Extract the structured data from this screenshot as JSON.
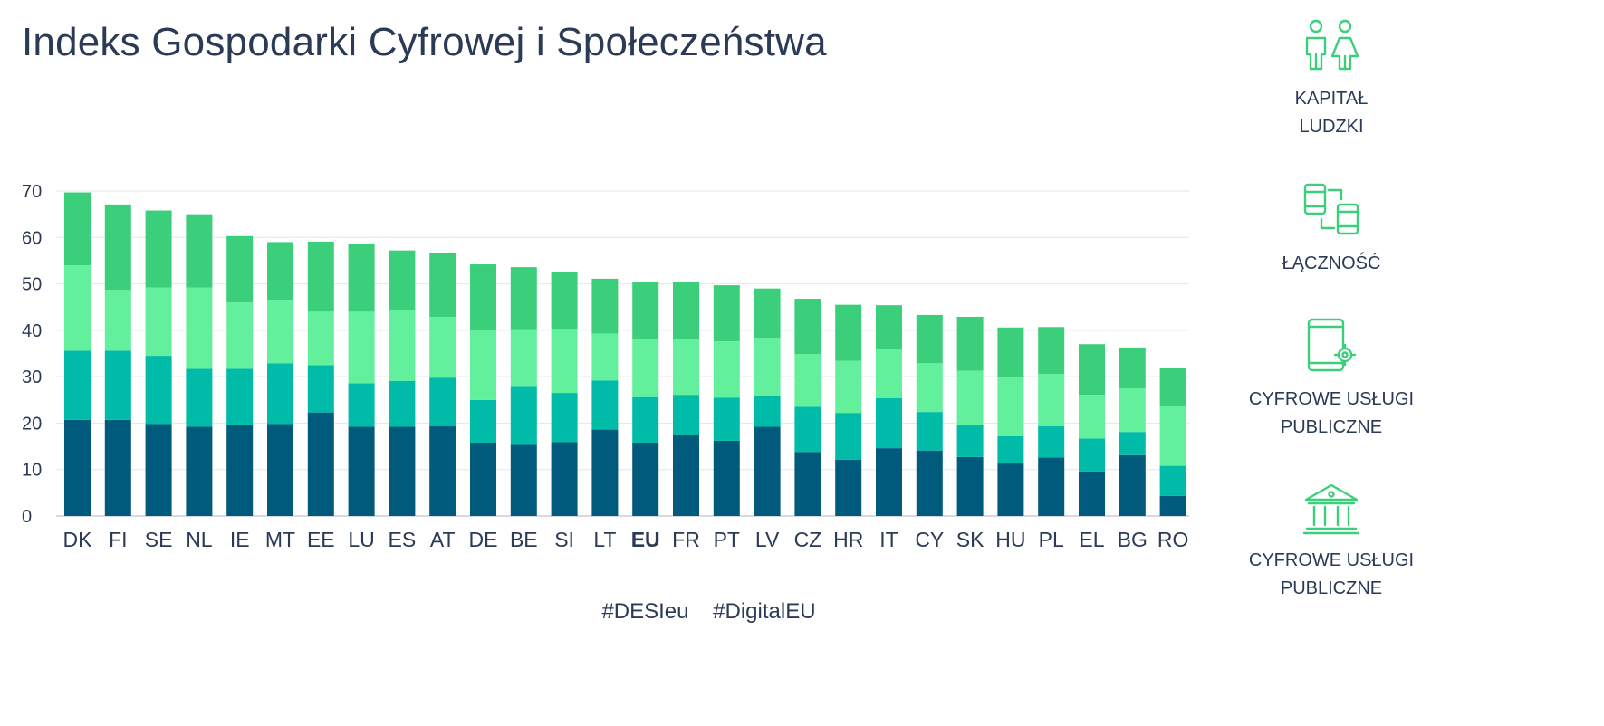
{
  "chart_data": {
    "type": "bar",
    "stacked": true,
    "title": "Indeks Gospodarki Cyfrowej i Społeczeństwa",
    "categories": [
      "DK",
      "FI",
      "SE",
      "NL",
      "IE",
      "MT",
      "EE",
      "LU",
      "ES",
      "AT",
      "DE",
      "BE",
      "SI",
      "LT",
      "EU",
      "FR",
      "PT",
      "LV",
      "CZ",
      "HR",
      "IT",
      "CY",
      "SK",
      "HU",
      "PL",
      "EL",
      "BG",
      "RO"
    ],
    "highlight_category": "EU",
    "ylim": [
      0,
      70
    ],
    "yticks": [
      0,
      10,
      20,
      30,
      40,
      50,
      60,
      70
    ],
    "grid": true,
    "series": [
      {
        "color": "#005a7c",
        "values": [
          20.7,
          20.7,
          19.8,
          19.2,
          19.7,
          19.8,
          22.3,
          19.2,
          19.2,
          19.3,
          15.8,
          15.3,
          15.9,
          18.6,
          15.8,
          17.4,
          16.2,
          19.2,
          13.8,
          12.1,
          14.6,
          14.1,
          12.7,
          11.3,
          12.6,
          9.6,
          13.1,
          4.3
        ]
      },
      {
        "color": "#00bba8",
        "values": [
          14.9,
          14.9,
          14.7,
          12.5,
          12.0,
          13.1,
          10.2,
          9.4,
          9.9,
          10.5,
          9.2,
          12.7,
          10.6,
          10.6,
          9.8,
          8.7,
          9.3,
          6.6,
          9.7,
          10.1,
          10.8,
          8.3,
          7.0,
          5.9,
          6.7,
          7.1,
          5.0,
          6.5
        ]
      },
      {
        "color": "#63f09c",
        "values": [
          18.4,
          13.1,
          14.7,
          17.5,
          14.3,
          13.7,
          11.5,
          15.4,
          15.3,
          13.1,
          15.0,
          12.2,
          13.8,
          10.1,
          12.6,
          12.0,
          12.1,
          12.6,
          11.4,
          11.2,
          10.5,
          10.5,
          11.6,
          12.8,
          11.3,
          9.4,
          9.4,
          12.9
        ]
      },
      {
        "color": "#3ccf7b",
        "values": [
          15.7,
          18.4,
          16.6,
          15.8,
          14.3,
          12.4,
          15.1,
          14.7,
          12.8,
          13.7,
          14.2,
          13.4,
          12.2,
          11.8,
          12.3,
          12.3,
          12.1,
          10.6,
          11.9,
          12.1,
          9.5,
          10.4,
          11.6,
          10.6,
          10.1,
          10.9,
          8.8,
          8.2
        ]
      }
    ],
    "legend_position": "right"
  },
  "hashtags": [
    "#DESIeu",
    "#DigitalEU"
  ],
  "legend": {
    "item1": {
      "icon": "people-icon",
      "line1": "KAPITAŁ",
      "line2": "LUDZKI"
    },
    "item2": {
      "icon": "devices-icon",
      "line1": "ŁĄCZNOŚĆ"
    },
    "item3": {
      "icon": "tablet-gear-icon",
      "line1": "CYFROWE USŁUGI",
      "line2": "PUBLICZNE"
    },
    "item4": {
      "icon": "government-building-icon",
      "line1": "CYFROWE USŁUGI",
      "line2": "PUBLICZNE"
    }
  },
  "colors": {
    "text": "#2b3a55",
    "grid": "#e6e9ee",
    "icon": "#3ccf7b"
  }
}
